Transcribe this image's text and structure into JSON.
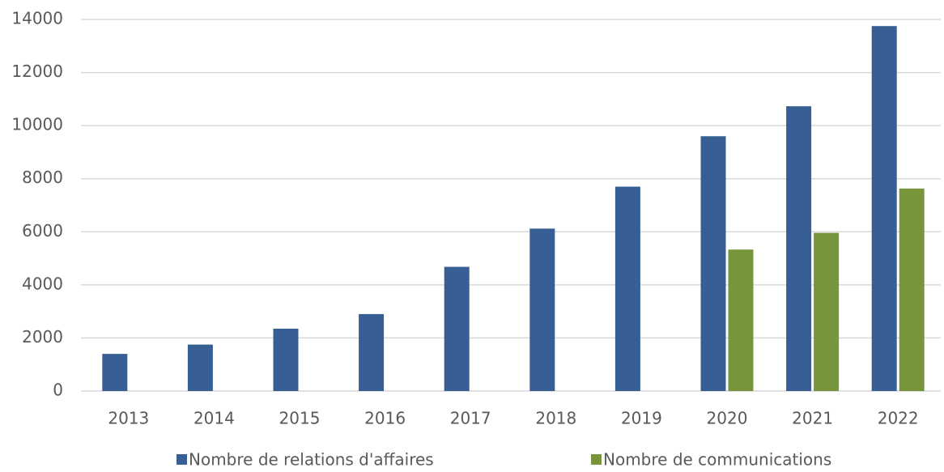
{
  "chart_data": {
    "type": "bar",
    "categories": [
      "2013",
      "2014",
      "2015",
      "2016",
      "2017",
      "2018",
      "2019",
      "2020",
      "2021",
      "2022"
    ],
    "series": [
      {
        "name": "Nombre de relations d'affaires",
        "color": "#375f93",
        "values": [
          1400,
          1750,
          2350,
          2900,
          4680,
          6120,
          7700,
          9600,
          10730,
          13750
        ]
      },
      {
        "name": "Nombre de communications",
        "color": "#77963b",
        "values": [
          null,
          null,
          null,
          null,
          null,
          null,
          null,
          5330,
          5960,
          7630
        ]
      }
    ],
    "ylim": [
      0,
      14000
    ],
    "yticks": [
      0,
      2000,
      4000,
      6000,
      8000,
      10000,
      12000,
      14000
    ],
    "grid": true,
    "legend": "bottom"
  }
}
